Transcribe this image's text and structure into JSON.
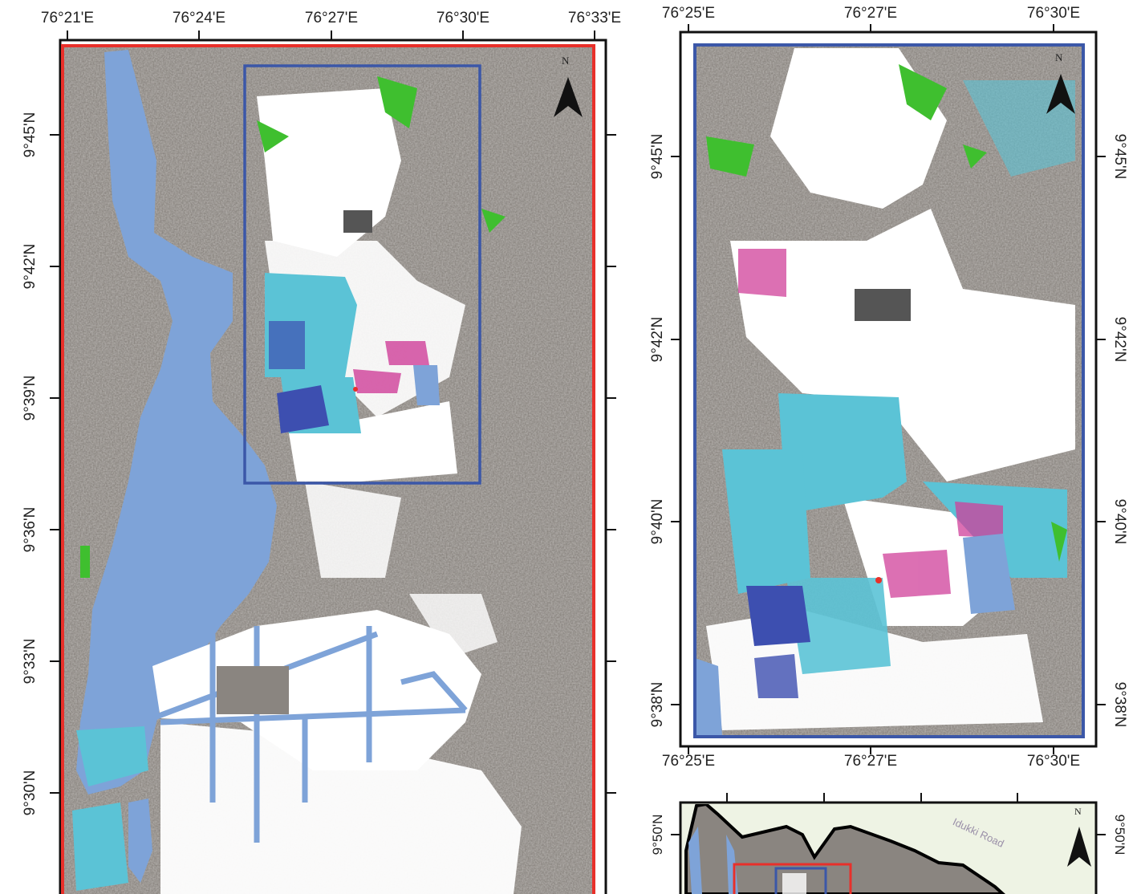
{
  "main_map": {
    "lon_labels": [
      "76°21'E",
      "76°24'E",
      "76°27'E",
      "76°30'E",
      "76°33'E"
    ],
    "lat_labels": [
      "9°45'N",
      "9°42'N",
      "9°39'N",
      "9°36'N",
      "9°33'N",
      "9°30'N"
    ],
    "north_label": "N",
    "frame_color": "#e8302a",
    "zoom_box_color": "#3b57a8"
  },
  "zoom_map": {
    "lon_labels": [
      "76°25'E",
      "76°27'E",
      "76°30'E"
    ],
    "lat_labels": [
      "9°45'N",
      "9°42'N",
      "9°40'N",
      "9°38'N"
    ],
    "north_label": "N",
    "frame_color": "#3b57a8"
  },
  "locator_map": {
    "lat_labels": [
      "9°50'N"
    ],
    "road_label": "Idukki Road",
    "north_label": "N"
  },
  "legend_colors": {
    "water": "#7ea3d8",
    "background": "#8a8580",
    "class_white": "#ffffff",
    "class_cyan": "#5bc3d6",
    "class_blue": "#3d4fb0",
    "class_magenta": "#d0409a",
    "class_green": "#3fbf2f"
  }
}
